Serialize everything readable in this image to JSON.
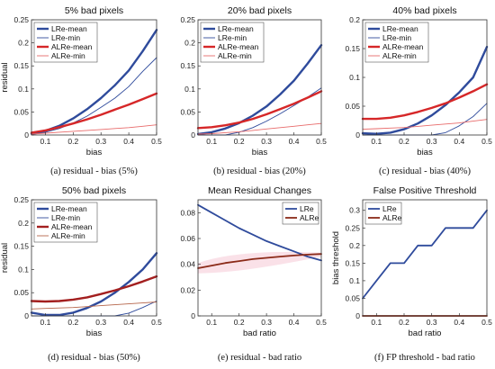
{
  "chart_data": [
    {
      "type": "line",
      "title": "5% bad pixels",
      "caption": "(a)  residual - bias (5%)",
      "xlabel": "bias",
      "ylabel": "residual",
      "xlim": [
        0.05,
        0.5
      ],
      "ylim": [
        0,
        0.25
      ],
      "xticks": [
        0.1,
        0.2,
        0.3,
        0.4,
        0.5
      ],
      "yticks": [
        0,
        0.05,
        0.1,
        0.15,
        0.2,
        0.25
      ],
      "legend": "top-left",
      "grid": false,
      "x": [
        0.05,
        0.1,
        0.15,
        0.2,
        0.25,
        0.3,
        0.35,
        0.4,
        0.45,
        0.5
      ],
      "series": [
        {
          "name": "LRe-mean",
          "color": "#2f4b9c",
          "width": 2.4,
          "values": [
            0.003,
            0.009,
            0.02,
            0.036,
            0.056,
            0.08,
            0.108,
            0.14,
            0.182,
            0.228
          ]
        },
        {
          "name": "LRe-min",
          "color": "#2f4b9c",
          "width": 0.9,
          "values": [
            0.001,
            0.006,
            0.014,
            0.026,
            0.041,
            0.06,
            0.08,
            0.105,
            0.138,
            0.168
          ]
        },
        {
          "name": "ALRe-mean",
          "color": "#d62728",
          "width": 2.4,
          "values": [
            0.005,
            0.01,
            0.017,
            0.025,
            0.034,
            0.044,
            0.055,
            0.066,
            0.078,
            0.09
          ]
        },
        {
          "name": "ALRe-min",
          "color": "#e86b6b",
          "width": 0.9,
          "values": [
            0.002,
            0.004,
            0.006,
            0.008,
            0.01,
            0.012,
            0.014,
            0.016,
            0.019,
            0.022
          ]
        }
      ]
    },
    {
      "type": "line",
      "title": "20% bad pixels",
      "caption": "(b)  residual - bias (20%)",
      "xlabel": "bias",
      "ylabel": "",
      "xlim": [
        0.05,
        0.5
      ],
      "ylim": [
        0,
        0.25
      ],
      "xticks": [
        0.1,
        0.2,
        0.3,
        0.4,
        0.5
      ],
      "yticks": [
        0,
        0.05,
        0.1,
        0.15,
        0.2,
        0.25
      ],
      "legend": "top-left",
      "grid": false,
      "x": [
        0.05,
        0.1,
        0.15,
        0.2,
        0.25,
        0.3,
        0.35,
        0.4,
        0.45,
        0.5
      ],
      "series": [
        {
          "name": "LRe-mean",
          "color": "#2f4b9c",
          "width": 2.4,
          "values": [
            0.002,
            0.006,
            0.014,
            0.026,
            0.042,
            0.062,
            0.088,
            0.118,
            0.155,
            0.195
          ]
        },
        {
          "name": "LRe-min",
          "color": "#2f4b9c",
          "width": 0.9,
          "values": [
            0.0,
            0.0,
            0.0,
            0.006,
            0.016,
            0.03,
            0.046,
            0.064,
            0.082,
            0.102
          ]
        },
        {
          "name": "ALRe-mean",
          "color": "#d62728",
          "width": 2.4,
          "values": [
            0.015,
            0.017,
            0.021,
            0.027,
            0.035,
            0.045,
            0.056,
            0.068,
            0.081,
            0.095
          ]
        },
        {
          "name": "ALRe-min",
          "color": "#e86b6b",
          "width": 0.9,
          "values": [
            0.002,
            0.003,
            0.005,
            0.007,
            0.01,
            0.013,
            0.016,
            0.019,
            0.022,
            0.025
          ]
        }
      ]
    },
    {
      "type": "line",
      "title": "40% bad pixels",
      "caption": "(c)  residual - bias (40%)",
      "xlabel": "bias",
      "ylabel": "",
      "xlim": [
        0.05,
        0.5
      ],
      "ylim": [
        0,
        0.2
      ],
      "xticks": [
        0.1,
        0.2,
        0.3,
        0.4,
        0.5
      ],
      "yticks": [
        0,
        0.05,
        0.1,
        0.15,
        0.2
      ],
      "legend": "top-left",
      "grid": false,
      "x": [
        0.05,
        0.1,
        0.15,
        0.2,
        0.25,
        0.3,
        0.35,
        0.4,
        0.45,
        0.5
      ],
      "series": [
        {
          "name": "LRe-mean",
          "color": "#2f4b9c",
          "width": 2.4,
          "values": [
            0.003,
            0.002,
            0.004,
            0.01,
            0.02,
            0.034,
            0.052,
            0.074,
            0.1,
            0.153
          ]
        },
        {
          "name": "LRe-min",
          "color": "#2f4b9c",
          "width": 0.9,
          "values": [
            0.0,
            0.0,
            0.0,
            0.0,
            0.0,
            0.0,
            0.004,
            0.016,
            0.032,
            0.055
          ]
        },
        {
          "name": "ALRe-mean",
          "color": "#d62728",
          "width": 2.4,
          "values": [
            0.028,
            0.028,
            0.03,
            0.034,
            0.04,
            0.047,
            0.055,
            0.065,
            0.076,
            0.088
          ]
        },
        {
          "name": "ALRe-min",
          "color": "#e86b6b",
          "width": 0.9,
          "values": [
            0.01,
            0.011,
            0.012,
            0.013,
            0.015,
            0.017,
            0.019,
            0.021,
            0.024,
            0.027
          ]
        }
      ]
    },
    {
      "type": "line",
      "title": "50% bad pixels",
      "caption": "(d)  residual - bias (50%)",
      "xlabel": "bias",
      "ylabel": "residual",
      "xlim": [
        0.05,
        0.5
      ],
      "ylim": [
        0,
        0.25
      ],
      "xticks": [
        0.1,
        0.2,
        0.3,
        0.4,
        0.5
      ],
      "yticks": [
        0,
        0.05,
        0.1,
        0.15,
        0.2,
        0.25
      ],
      "legend": "top-left",
      "grid": false,
      "x": [
        0.05,
        0.1,
        0.15,
        0.2,
        0.25,
        0.3,
        0.35,
        0.4,
        0.45,
        0.5
      ],
      "series": [
        {
          "name": "LRe-mean",
          "color": "#2f4b9c",
          "width": 2.4,
          "values": [
            0.007,
            0.002,
            0.002,
            0.007,
            0.017,
            0.031,
            0.05,
            0.073,
            0.1,
            0.135
          ]
        },
        {
          "name": "LRe-min",
          "color": "#2f4b9c",
          "width": 0.9,
          "values": [
            0.0,
            0.0,
            0.0,
            0.0,
            0.0,
            0.0,
            0.0,
            0.006,
            0.018,
            0.032
          ]
        },
        {
          "name": "ALRe-mean",
          "color": "#a31f1f",
          "width": 2.4,
          "values": [
            0.032,
            0.031,
            0.032,
            0.035,
            0.04,
            0.047,
            0.055,
            0.064,
            0.074,
            0.085
          ]
        },
        {
          "name": "ALRe-min",
          "color": "#b5654a",
          "width": 0.9,
          "values": [
            0.015,
            0.016,
            0.017,
            0.018,
            0.02,
            0.022,
            0.024,
            0.026,
            0.028,
            0.03
          ]
        }
      ]
    },
    {
      "type": "line",
      "title": "Mean Residual Changes",
      "caption": "(e)  residual - bad ratio",
      "xlabel": "bad ratio",
      "ylabel": "",
      "xlim": [
        0.05,
        0.5
      ],
      "ylim": [
        0,
        0.09
      ],
      "xticks": [
        0.1,
        0.2,
        0.3,
        0.4,
        0.5
      ],
      "yticks": [
        0,
        0.02,
        0.04,
        0.06,
        0.08
      ],
      "legend": "top-right",
      "grid": false,
      "x": [
        0.05,
        0.1,
        0.15,
        0.2,
        0.25,
        0.3,
        0.35,
        0.4,
        0.45,
        0.5
      ],
      "series": [
        {
          "name": "LRe",
          "color": "#2f4b9c",
          "width": 1.8,
          "values": [
            0.086,
            0.08,
            0.074,
            0.068,
            0.063,
            0.058,
            0.054,
            0.05,
            0.046,
            0.043
          ]
        },
        {
          "name": "ALRe",
          "color": "#8b2a18",
          "width": 1.8,
          "values": [
            0.037,
            0.039,
            0.041,
            0.0425,
            0.044,
            0.045,
            0.046,
            0.0468,
            0.0475,
            0.048
          ]
        }
      ]
    },
    {
      "type": "line",
      "title": "False Positive Threshold",
      "caption": "(f)  FP threshold - bad ratio",
      "xlabel": "bad ratio",
      "ylabel": "bias threshold",
      "xlim": [
        0.05,
        0.5
      ],
      "ylim": [
        0,
        0.33
      ],
      "xticks": [
        0.1,
        0.2,
        0.3,
        0.4,
        0.5
      ],
      "yticks": [
        0,
        0.05,
        0.1,
        0.15,
        0.2,
        0.25,
        0.3
      ],
      "legend": "top-left",
      "grid": false,
      "x": [
        0.05,
        0.1,
        0.15,
        0.2,
        0.25,
        0.3,
        0.35,
        0.4,
        0.45,
        0.5
      ],
      "series": [
        {
          "name": "LRe",
          "color": "#2f4b9c",
          "width": 1.8,
          "values": [
            0.05,
            0.1,
            0.15,
            0.15,
            0.2,
            0.2,
            0.25,
            0.25,
            0.25,
            0.3
          ]
        },
        {
          "name": "ALRe",
          "color": "#8b2a18",
          "width": 1.8,
          "values": [
            0,
            0,
            0,
            0,
            0,
            0,
            0,
            0,
            0,
            0
          ]
        }
      ]
    }
  ]
}
